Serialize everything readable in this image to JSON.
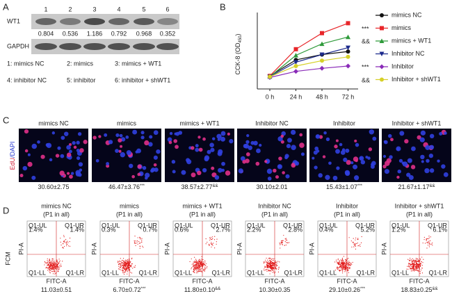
{
  "panel_a": {
    "label": "A",
    "lanes": [
      "1",
      "2",
      "3",
      "4",
      "5",
      "6"
    ],
    "rows": [
      "WT1",
      "GAPDH"
    ],
    "ratios": [
      0.804,
      0.536,
      1.186,
      0.792,
      0.968,
      0.352
    ],
    "legend": [
      "1: mimics NC",
      "2: mimics",
      "3: mimics + WT1",
      "4: inhibitor NC",
      "5: inhibitor",
      "6: inhibitor + shWT1"
    ]
  },
  "chart_data": {
    "type": "line",
    "label": "B",
    "y_label": [
      "CCK-8 (OD",
      "450",
      ")"
    ],
    "categories": [
      "0 h",
      "24 h",
      "48 h",
      "72 h"
    ],
    "ylim": [
      0,
      1
    ],
    "series": [
      {
        "name": "mimics NC",
        "color": "#111111",
        "marker": "circle",
        "values": [
          0.17,
          0.38,
          0.45,
          0.49
        ]
      },
      {
        "name": "mimics",
        "color": "#e8262a",
        "marker": "square",
        "values": [
          0.17,
          0.52,
          0.73,
          0.86
        ]
      },
      {
        "name": "mimics + WT1",
        "color": "#2e9a3a",
        "marker": "triangle-up",
        "values": [
          0.16,
          0.44,
          0.59,
          0.68
        ]
      },
      {
        "name": "Inhibitor NC",
        "color": "#1c2a8c",
        "marker": "triangle-down",
        "values": [
          0.16,
          0.35,
          0.45,
          0.54
        ]
      },
      {
        "name": "Inhibitor",
        "color": "#8a2bb8",
        "marker": "diamond",
        "values": [
          0.15,
          0.23,
          0.27,
          0.3
        ]
      },
      {
        "name": "Inhibitor + shWT1",
        "color": "#d6d028",
        "marker": "circle",
        "values": [
          0.16,
          0.3,
          0.37,
          0.42
        ]
      }
    ],
    "annotations": [
      "***",
      "&&",
      "***",
      "&&"
    ]
  },
  "panel_c": {
    "label": "C",
    "y_label": [
      "EdU",
      "/DAPI"
    ],
    "columns": [
      {
        "title": "mimics NC",
        "value": "30.60±2.75"
      },
      {
        "title": "mimics",
        "value": "46.47±3.76",
        "sig": "***"
      },
      {
        "title": "mimics + WT1",
        "value": "38.57±2.77",
        "sig": "&&"
      },
      {
        "title": "Inhibitor NC",
        "value": "30.10±2.01"
      },
      {
        "title": "Inhibitor",
        "value": "15.43±1.07",
        "sig": "***"
      },
      {
        "title": "Inhibitor + shWT1",
        "value": "21.67±1.17",
        "sig": "&&"
      }
    ]
  },
  "panel_d": {
    "label": "D",
    "method": "FCM",
    "subtitle": "(P1 in all)",
    "x_axis": "FITC-A",
    "y_axis": "PI-A",
    "quadrants": [
      "Q1-UL",
      "Q1-UR",
      "Q1-LL",
      "Q1-LR"
    ],
    "columns": [
      {
        "title": "mimics NC",
        "ul": "1.4%",
        "ur": "1.4%",
        "value": "11.03±0.51"
      },
      {
        "title": "mimics",
        "ul": "0.3%",
        "ur": "0.7%",
        "value": "6.70±0.72",
        "sig": "***"
      },
      {
        "title": "mimics + WT1",
        "ul": "0.6%",
        "ur": "2.7%",
        "value": "11.80±0.10",
        "sig": "&&"
      },
      {
        "title": "Inhibitor NC",
        "ul": "2.2%",
        "ur": "2.8%",
        "value": "10.30±0.35"
      },
      {
        "title": "Inhibitor",
        "ul": "0.4%",
        "ur": "5.2%",
        "value": "29.10±0.26",
        "sig": "***"
      },
      {
        "title": "Inhibitor + shWT1",
        "ul": "1.2%",
        "ur": "6.1%",
        "value": "18.83±0.25",
        "sig": "&&"
      }
    ]
  }
}
